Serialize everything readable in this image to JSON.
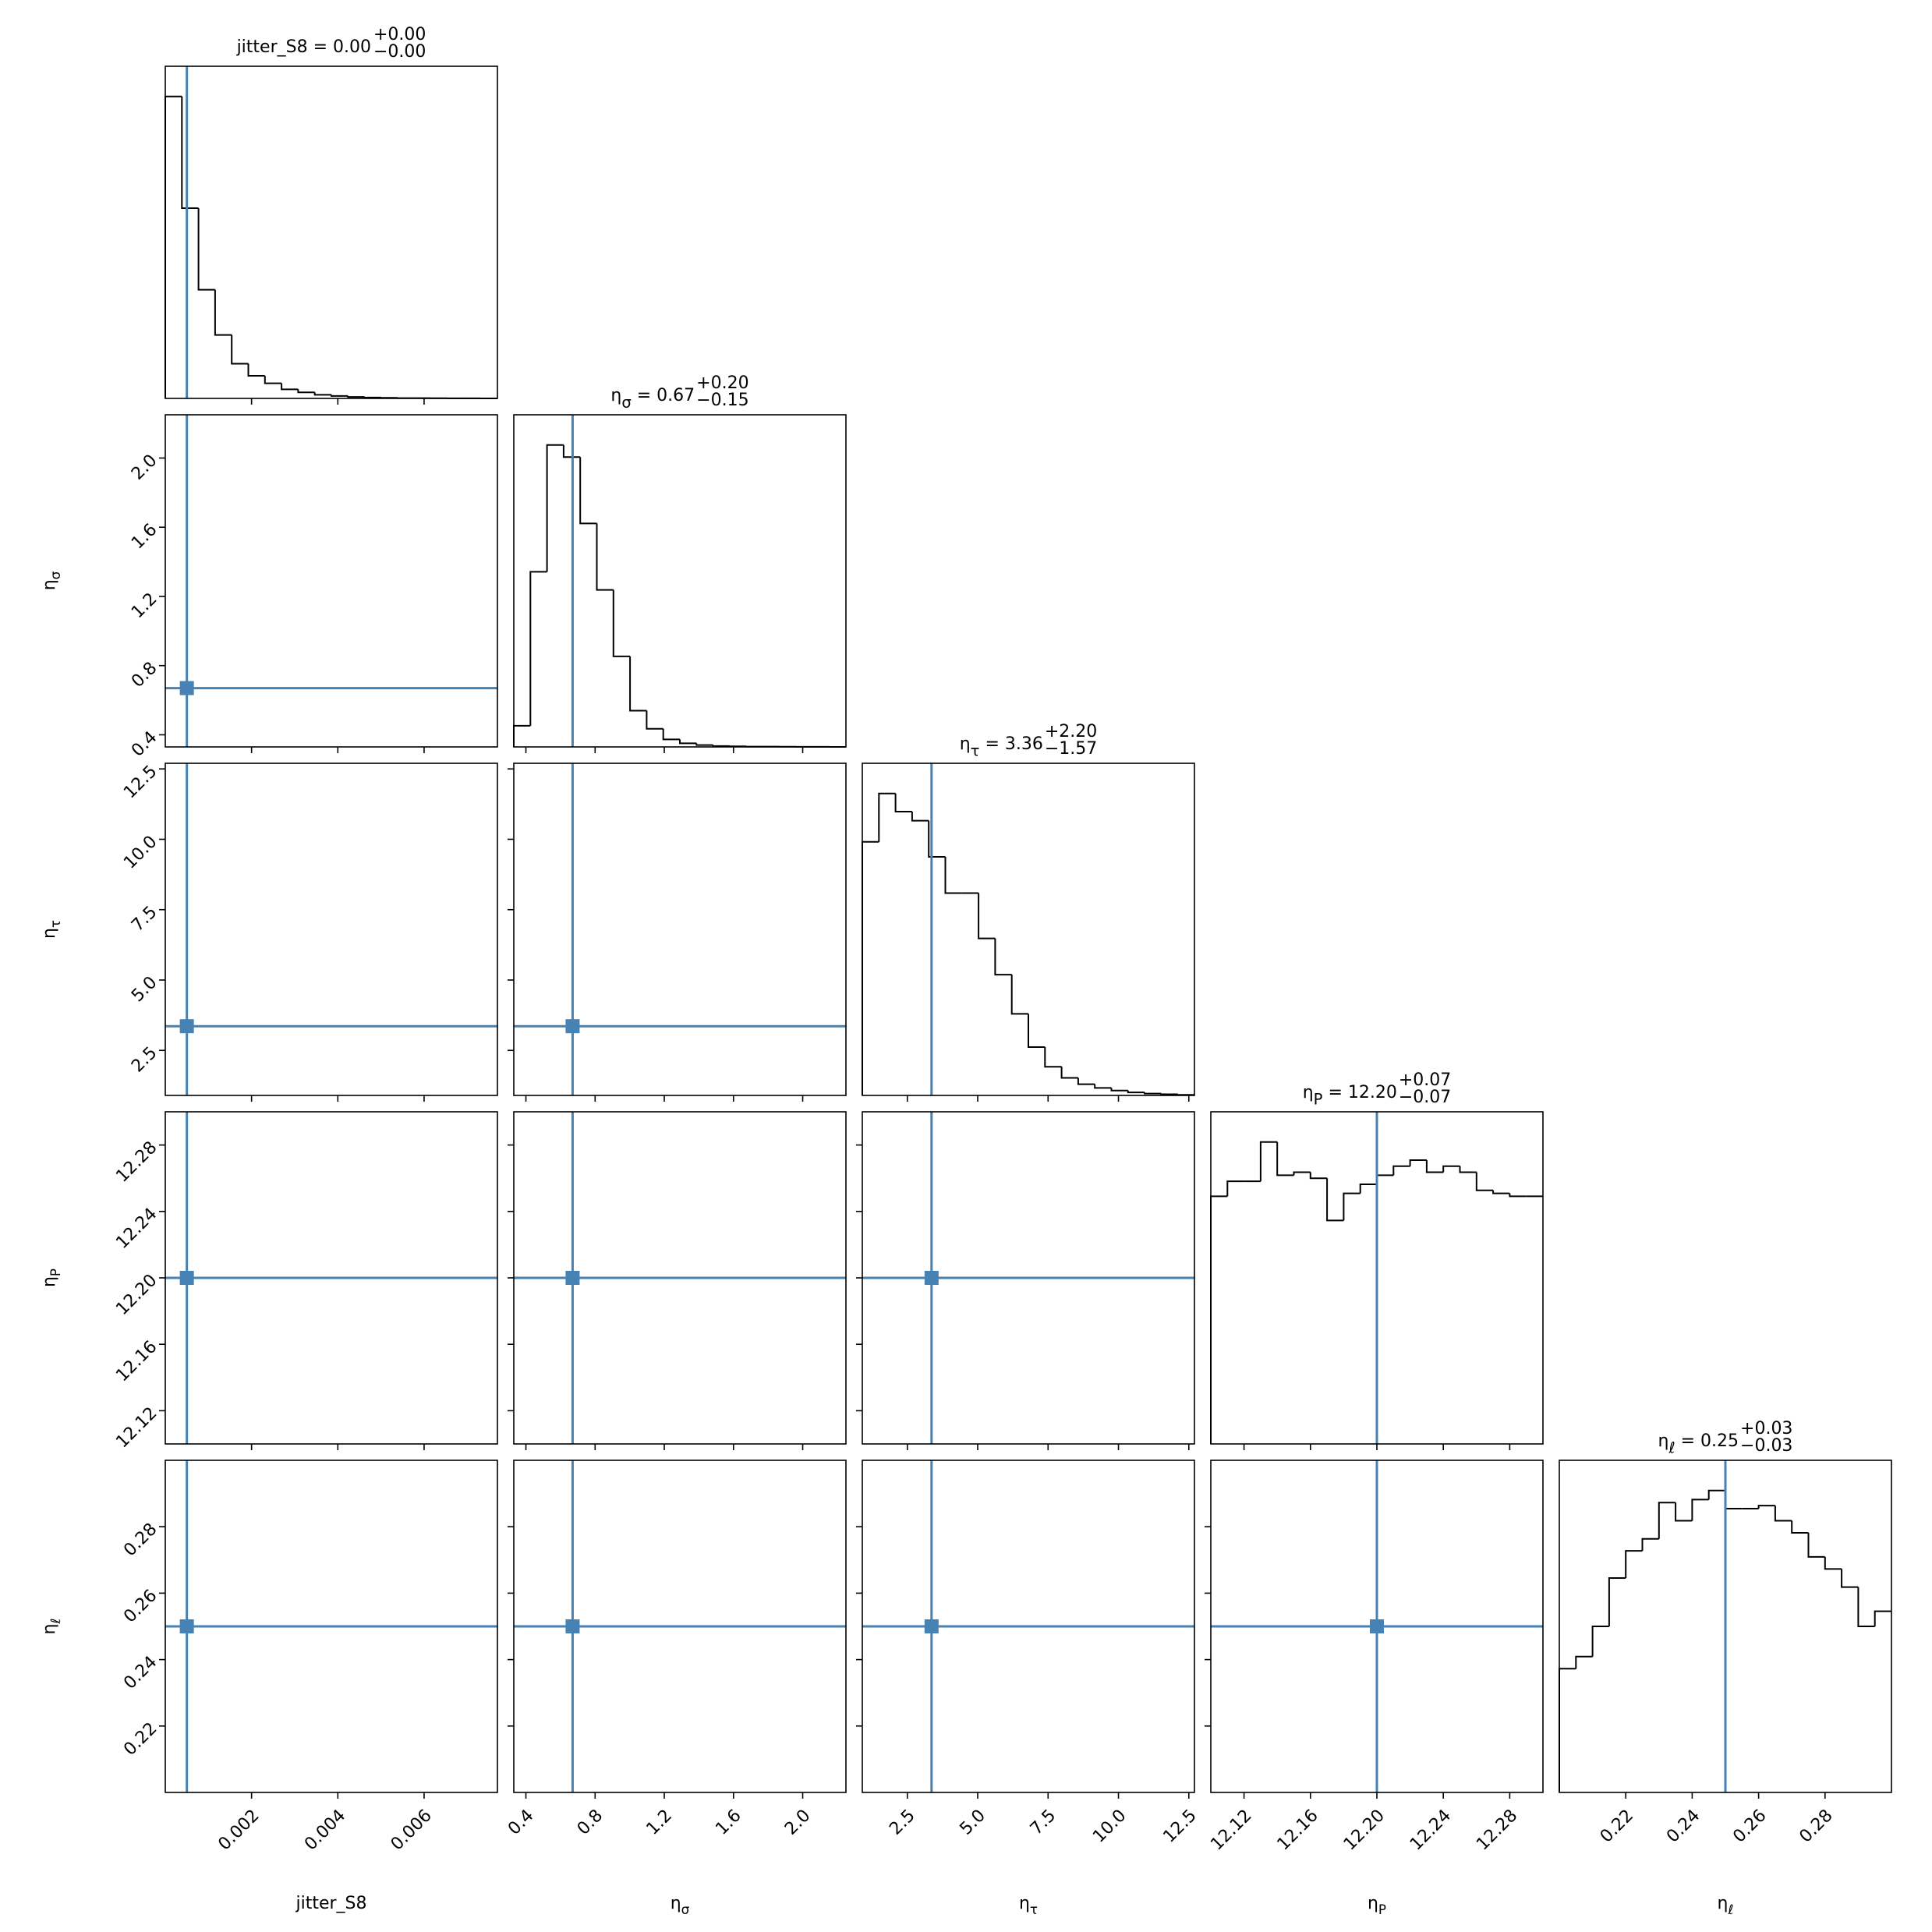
{
  "chart_data": {
    "type": "corner",
    "line_color": "#000000",
    "median_color": "#4682b4",
    "hist_ylim": [
      0,
      1.1
    ],
    "parameters": [
      {
        "symbol": "jitter_S8",
        "xlim": [
          0,
          0.0077
        ],
        "median": 0.0005,
        "ticks": [
          0.002,
          0.004,
          0.006
        ],
        "title": {
          "text": " = 0.00",
          "upper": "+0.00",
          "lower": "−0.00"
        },
        "bins": [
          0,
          0.000385,
          0.00077,
          0.001155,
          0.00154,
          0.001925,
          0.00231,
          0.002695,
          0.00308,
          0.003465,
          0.00385,
          0.004235,
          0.00462,
          0.005005,
          0.00539,
          0.005775,
          0.00616,
          0.006545,
          0.00693,
          0.007315,
          0.0077
        ],
        "values": [
          1.0,
          0.63,
          0.36,
          0.21,
          0.115,
          0.075,
          0.05,
          0.03,
          0.02,
          0.012,
          0.008,
          0.005,
          0.003,
          0.002,
          0.001,
          0.001,
          0.0005,
          0.0003,
          0.0002,
          0.0001
        ]
      },
      {
        "symbol": "η",
        "subscript": "σ",
        "xlim": [
          0.33,
          2.25
        ],
        "median": 0.67,
        "ticks": [
          0.4,
          0.8,
          1.2,
          1.6,
          {
            "value": 2,
            "label": "2.0"
          }
        ],
        "title": {
          "text": " = 0.67",
          "upper": "+0.20",
          "lower": "−0.15"
        },
        "bins": [
          0.33,
          0.426,
          0.522,
          0.618,
          0.714,
          0.81,
          0.906,
          1.002,
          1.098,
          1.194,
          1.29,
          1.386,
          1.482,
          1.578,
          1.674,
          1.77,
          1.866,
          1.962,
          2.058,
          2.154,
          2.25
        ],
        "values": [
          0.07,
          0.58,
          1.0,
          0.96,
          0.74,
          0.52,
          0.3,
          0.12,
          0.06,
          0.025,
          0.012,
          0.006,
          0.003,
          0.002,
          0.001,
          0.001,
          0.0005,
          0.0003,
          0.0002,
          0.0001
        ]
      },
      {
        "symbol": "η",
        "subscript": "τ",
        "xlim": [
          0.9,
          12.7
        ],
        "median": 3.36,
        "ticks": [
          2.5,
          {
            "value": 5,
            "label": "5.0"
          },
          7.5,
          {
            "value": 10,
            "label": "10.0"
          },
          12.5
        ],
        "title": {
          "text": " = 3.36",
          "upper": "+2.20",
          "lower": "−1.57"
        },
        "bins": [
          0.9,
          1.49,
          2.08,
          2.67,
          3.26,
          3.85,
          4.44,
          5.03,
          5.62,
          6.21,
          6.8,
          7.39,
          7.98,
          8.57,
          9.16,
          9.75,
          10.34,
          10.93,
          11.52,
          12.11,
          12.7
        ],
        "values": [
          0.84,
          1.0,
          0.94,
          0.91,
          0.79,
          0.67,
          0.67,
          0.52,
          0.4,
          0.27,
          0.16,
          0.095,
          0.058,
          0.037,
          0.025,
          0.016,
          0.01,
          0.006,
          0.004,
          0.002
        ]
      },
      {
        "symbol": "η",
        "subscript": "P",
        "xlim": [
          12.1,
          12.3
        ],
        "median": 12.2,
        "ticks": [
          12.12,
          12.16,
          {
            "value": 12.2,
            "label": "12.20"
          },
          12.24,
          12.28
        ],
        "title": {
          "text": " = 12.20",
          "upper": "+0.07",
          "lower": "−0.07"
        },
        "bins": [
          12.1,
          12.11,
          12.12,
          12.13,
          12.14,
          12.15,
          12.16,
          12.17,
          12.18,
          12.19,
          12.2,
          12.21,
          12.22,
          12.23,
          12.24,
          12.25,
          12.26,
          12.27,
          12.28,
          12.29,
          12.3
        ],
        "values": [
          0.82,
          0.87,
          0.87,
          1.0,
          0.89,
          0.9,
          0.88,
          0.74,
          0.83,
          0.86,
          0.89,
          0.92,
          0.94,
          0.9,
          0.92,
          0.9,
          0.84,
          0.83,
          0.82,
          0.82
        ]
      },
      {
        "symbol": "η",
        "subscript": "ℓ",
        "xlim": [
          0.2,
          0.3
        ],
        "median": 0.25,
        "ticks": [
          0.22,
          0.24,
          0.26,
          0.28
        ],
        "title": {
          "text": " = 0.25",
          "upper": "+0.03",
          "lower": "−0.03"
        },
        "bins": [
          0.2,
          0.205,
          0.21,
          0.215,
          0.22,
          0.225,
          0.23,
          0.235,
          0.24,
          0.245,
          0.25,
          0.255,
          0.26,
          0.265,
          0.27,
          0.275,
          0.28,
          0.285,
          0.29,
          0.295,
          0.3
        ],
        "values": [
          0.41,
          0.45,
          0.55,
          0.71,
          0.8,
          0.84,
          0.96,
          0.9,
          0.97,
          1.0,
          0.94,
          0.94,
          0.95,
          0.9,
          0.86,
          0.78,
          0.74,
          0.68,
          0.55,
          0.6
        ]
      }
    ]
  }
}
